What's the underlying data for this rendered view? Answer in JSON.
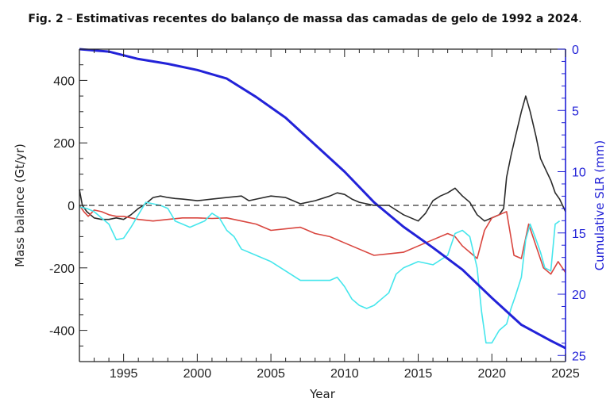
{
  "caption": {
    "fig": "Fig. 2",
    "dash": "–",
    "text": "Estimativas recentes do balanço de massa das camadas de gelo de 1992 a 2024",
    "end": "."
  },
  "chart_data": {
    "type": "line",
    "title": "",
    "xlabel": "Year",
    "ylabel": "Mass balance  (Gt/yr)",
    "y2label": "Cumulative SLR (mm)",
    "xlim": [
      1992,
      2025
    ],
    "ylim": [
      -500,
      500
    ],
    "y2lim": [
      0,
      25.5
    ],
    "y2_inverted": true,
    "x_ticks": [
      1995,
      2000,
      2005,
      2010,
      2015,
      2020,
      2025
    ],
    "y_ticks": [
      -400,
      -200,
      0,
      200,
      400
    ],
    "y2_ticks": [
      0,
      5,
      10,
      15,
      20,
      25
    ],
    "reference_line": 0,
    "colors": {
      "black": "#2a2a2a",
      "red": "#d9463f",
      "cyan": "#45e6ec",
      "blue": "#2222d8",
      "axis_right": "#1f1fd6"
    },
    "series": [
      {
        "color": "#2a2a2a",
        "axis": "left",
        "x": [
          1992.0,
          1992.2,
          1992.5,
          1993.0,
          1993.5,
          1994.0,
          1994.5,
          1995.0,
          1995.5,
          1996.0,
          1996.5,
          1997.0,
          1997.5,
          1998.0,
          1998.5,
          1999.0,
          2000.0,
          2001.0,
          2002.0,
          2003.0,
          2003.5,
          2004.0,
          2005.0,
          2006.0,
          2007.0,
          2008.0,
          2009.0,
          2009.5,
          2010.0,
          2010.5,
          2011.0,
          2011.5,
          2012.0,
          2013.0,
          2014.0,
          2015.0,
          2015.5,
          2016.0,
          2016.5,
          2017.0,
          2017.5,
          2018.0,
          2018.5,
          2019.0,
          2019.5,
          2020.0,
          2020.5,
          2020.8,
          2021.0,
          2021.3,
          2021.6,
          2022.0,
          2022.3,
          2022.6,
          2023.0,
          2023.3,
          2023.6,
          2024.0,
          2024.3,
          2024.6,
          2025.0
        ],
        "y": [
          50,
          0,
          -20,
          -40,
          -45,
          -45,
          -40,
          -45,
          -30,
          -10,
          5,
          25,
          30,
          25,
          22,
          20,
          15,
          20,
          25,
          30,
          15,
          20,
          30,
          25,
          5,
          15,
          30,
          40,
          35,
          20,
          10,
          5,
          0,
          0,
          -30,
          -50,
          -25,
          15,
          30,
          40,
          55,
          30,
          10,
          -30,
          -50,
          -40,
          -30,
          -10,
          90,
          160,
          220,
          300,
          350,
          300,
          220,
          150,
          120,
          80,
          40,
          20,
          -20
        ]
      },
      {
        "color": "#d9463f",
        "axis": "left",
        "x": [
          1992.0,
          1992.3,
          1992.6,
          1993.0,
          1993.5,
          1994.0,
          1994.5,
          1995.0,
          1995.5,
          1996.0,
          1997.0,
          1998.0,
          1999.0,
          2000.0,
          2001.0,
          2002.0,
          2003.0,
          2004.0,
          2005.0,
          2006.0,
          2007.0,
          2008.0,
          2009.0,
          2010.0,
          2011.0,
          2012.0,
          2013.0,
          2014.0,
          2015.0,
          2016.0,
          2017.0,
          2017.5,
          2018.0,
          2018.5,
          2019.0,
          2019.5,
          2020.0,
          2020.5,
          2021.0,
          2021.5,
          2022.0,
          2022.5,
          2023.0,
          2023.5,
          2024.0,
          2024.5,
          2025.0
        ],
        "y": [
          0,
          -20,
          -35,
          -15,
          -20,
          -30,
          -35,
          -35,
          -40,
          -45,
          -50,
          -45,
          -40,
          -40,
          -42,
          -40,
          -50,
          -60,
          -80,
          -75,
          -70,
          -90,
          -100,
          -120,
          -140,
          -160,
          -155,
          -150,
          -130,
          -110,
          -90,
          -100,
          -130,
          -150,
          -170,
          -80,
          -40,
          -30,
          -20,
          -160,
          -170,
          -60,
          -130,
          -200,
          -220,
          -180,
          -215
        ]
      },
      {
        "color": "#45e6ec",
        "axis": "left",
        "x": [
          1992.0,
          1992.5,
          1993.0,
          1993.5,
          1994.0,
          1994.5,
          1995.0,
          1995.5,
          1996.0,
          1996.5,
          1997.0,
          1997.5,
          1998.0,
          1998.5,
          1999.0,
          1999.5,
          2000.0,
          2000.5,
          2001.0,
          2001.5,
          2002.0,
          2002.5,
          2003.0,
          2004.0,
          2005.0,
          2006.0,
          2007.0,
          2008.0,
          2009.0,
          2009.5,
          2010.0,
          2010.5,
          2011.0,
          2011.5,
          2012.0,
          2012.5,
          2013.0,
          2013.5,
          2014.0,
          2015.0,
          2016.0,
          2017.0,
          2017.5,
          2018.0,
          2018.5,
          2019.0,
          2019.3,
          2019.6,
          2020.0,
          2020.5,
          2021.0,
          2021.3,
          2021.6,
          2022.0,
          2022.3,
          2022.6,
          2023.0,
          2023.3,
          2023.6,
          2024.0,
          2024.3,
          2024.6
        ],
        "y": [
          -5,
          -10,
          -20,
          -40,
          -60,
          -110,
          -105,
          -70,
          -30,
          10,
          5,
          0,
          -10,
          -50,
          -60,
          -70,
          -60,
          -50,
          -25,
          -40,
          -80,
          -100,
          -140,
          -160,
          -180,
          -210,
          -240,
          -240,
          -240,
          -230,
          -260,
          -300,
          -320,
          -330,
          -320,
          -300,
          -280,
          -220,
          -200,
          -180,
          -190,
          -160,
          -90,
          -80,
          -100,
          -200,
          -340,
          -440,
          -440,
          -400,
          -380,
          -330,
          -290,
          -230,
          -110,
          -60,
          -110,
          -150,
          -200,
          -210,
          -60,
          -50
        ]
      },
      {
        "color": "#2222d8",
        "axis": "right",
        "x": [
          1992.0,
          1994.0,
          1996.0,
          1998.0,
          2000.0,
          2002.0,
          2004.0,
          2006.0,
          2008.0,
          2010.0,
          2012.0,
          2014.0,
          2016.0,
          2018.0,
          2020.0,
          2022.0,
          2024.0,
          2025.0
        ],
        "y": [
          0,
          0.2,
          0.8,
          1.2,
          1.7,
          2.4,
          3.9,
          5.6,
          7.8,
          10.0,
          12.5,
          14.5,
          16.2,
          18.0,
          20.3,
          22.5,
          23.8,
          24.4
        ]
      }
    ]
  }
}
